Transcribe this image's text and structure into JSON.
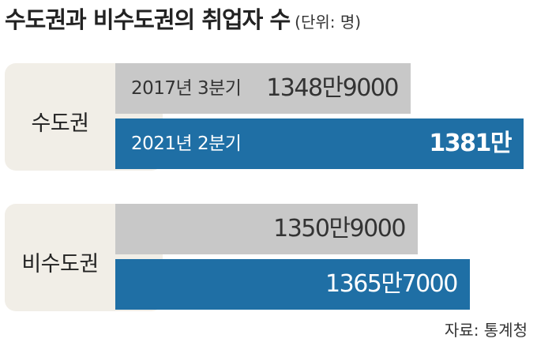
{
  "title": "수도권과 비수도권의 취업자 수",
  "unit": "(단위: 명)",
  "source": "자료: 통계청",
  "colors": {
    "gray": "#c8c8c8",
    "blue": "#1f6fa5",
    "box": "#f1eee7"
  },
  "chart_data": {
    "type": "bar",
    "orientation": "horizontal",
    "categories": [
      "수도권",
      "비수도권"
    ],
    "series": [
      {
        "name": "2017년 3분기",
        "values": [
          13489000,
          13509000
        ],
        "labels": [
          "1348만9000",
          "1350만9000"
        ]
      },
      {
        "name": "2021년 2분기",
        "values": [
          13810000,
          13657000
        ],
        "labels": [
          "1381만",
          "1365만7000"
        ]
      }
    ],
    "value_unit": "명"
  }
}
